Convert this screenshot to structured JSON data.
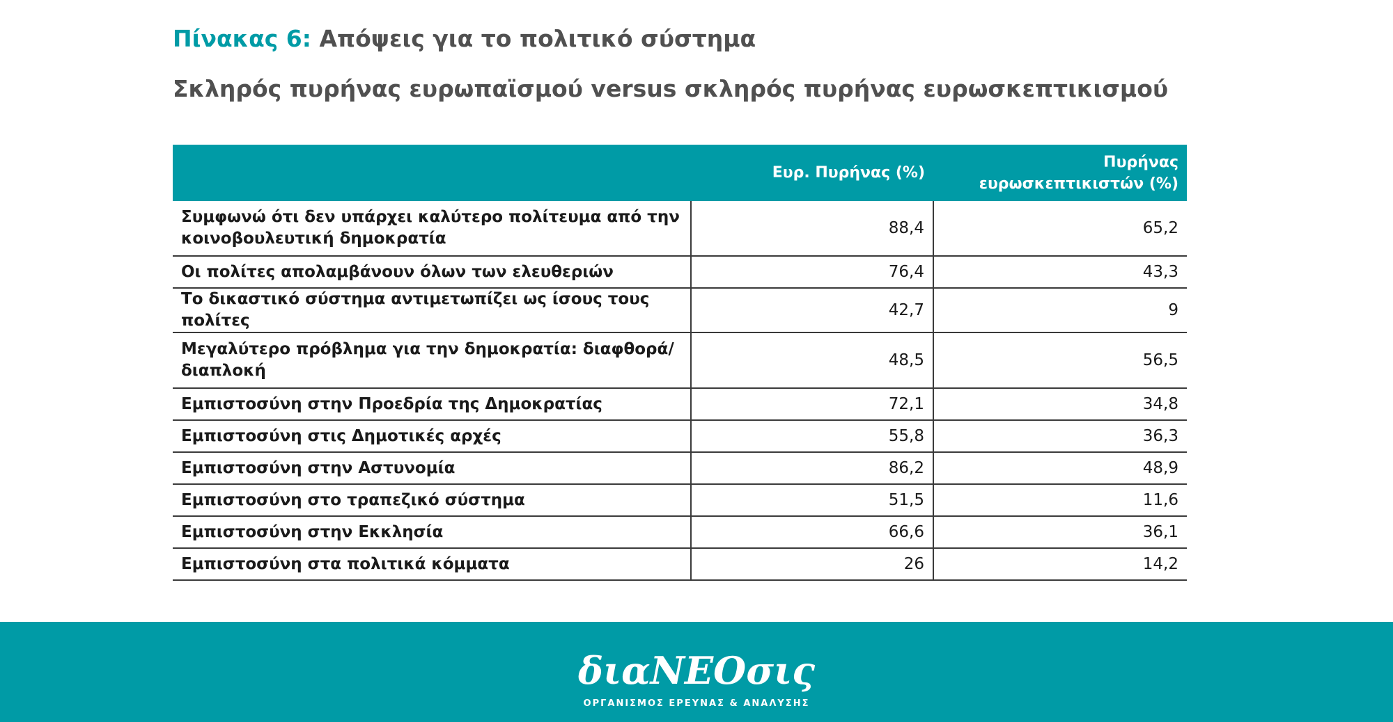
{
  "header": {
    "table_label": "Πίνακας 6:",
    "title": "Απόψεις για το πολιτικό σύστημα",
    "subtitle": "Σκληρός πυρήνας ευρωπαϊσμού versus σκληρός πυρήνας ευρωσκεπτικισμού"
  },
  "table": {
    "columns": [
      "",
      "Ευρ. Πυρήνας (%)",
      "Πυρήνας ευρωσκεπτικιστών (%)"
    ],
    "rows": [
      {
        "label": "Συμφωνώ ότι δεν υπάρχει καλύτερο πολίτευμα από την κοινοβουλευτική δημοκρατία",
        "euro": "88,4",
        "skeptic": "65,2"
      },
      {
        "label": "Οι πολίτες απολαμβάνουν όλων των ελευθεριών",
        "euro": "76,4",
        "skeptic": "43,3"
      },
      {
        "label": "Το δικαστικό σύστημα αντιμετωπίζει ως ίσους τους πολίτες",
        "euro": "42,7",
        "skeptic": "9"
      },
      {
        "label": "Μεγαλύτερο πρόβλημα για την δημοκρατία: διαφθορά/ διαπλοκή",
        "euro": "48,5",
        "skeptic": "56,5"
      },
      {
        "label": "Εμπιστοσύνη στην Προεδρία της Δημοκρατίας",
        "euro": "72,1",
        "skeptic": "34,8"
      },
      {
        "label": "Εμπιστοσύνη στις Δημοτικές αρχές",
        "euro": "55,8",
        "skeptic": "36,3"
      },
      {
        "label": "Εμπιστοσύνη στην Αστυνομία",
        "euro": "86,2",
        "skeptic": "48,9"
      },
      {
        "label": "Εμπιστοσύνη στο τραπεζικό σύστημα",
        "euro": "51,5",
        "skeptic": "11,6"
      },
      {
        "label": "Εμπιστοσύνη στην Εκκλησία",
        "euro": "66,6",
        "skeptic": "36,1"
      },
      {
        "label": "Εμπιστοσύνη στα πολιτικά κόμματα",
        "euro": "26",
        "skeptic": "14,2"
      }
    ]
  },
  "footer": {
    "logo_text": "διαΝΕΟσις",
    "tagline": "ΟΡΓΑΝΙΣΜΟΣ ΕΡΕΥΝΑΣ & ΑΝΑΛΥΣΗΣ"
  },
  "colors": {
    "accent": "#009ba6",
    "title_gray": "#505050"
  }
}
